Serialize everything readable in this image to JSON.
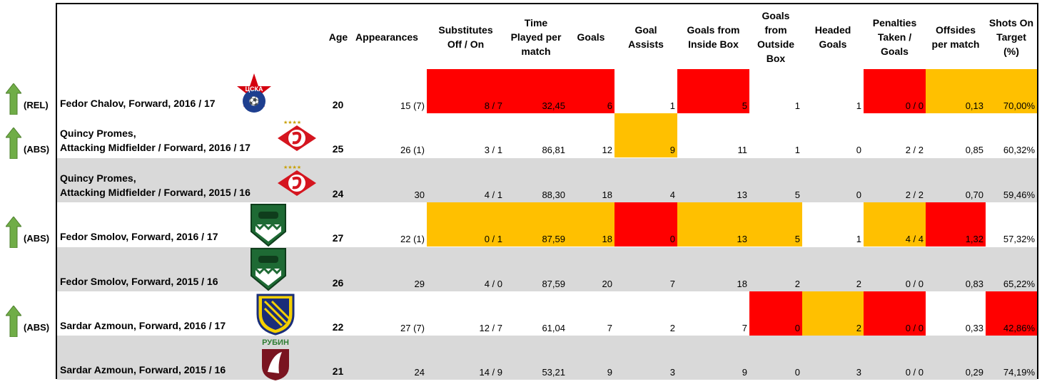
{
  "colors": {
    "red": "#ff0000",
    "amber": "#ffc000",
    "grey": "#d9d9d9",
    "arrow": "#70ad47"
  },
  "chart_data": {
    "type": "table",
    "columns": [
      "Age",
      "Appearances",
      "Substitutes Off / On",
      "Time Played per match",
      "Goals",
      "Goal Assists",
      "Goals from Inside Box",
      "Goals from Outside Box",
      "Headed Goals",
      "Penalties Taken / Goals",
      "Offsides per match",
      "Shots On Target (%)"
    ],
    "header_lines": [
      [
        "Age"
      ],
      [
        "Appearances"
      ],
      [
        "Substitutes",
        "Off / On"
      ],
      [
        "Time",
        "Played per",
        "match"
      ],
      [
        "Goals"
      ],
      [
        "Goal",
        "Assists"
      ],
      [
        "Goals from",
        "Inside Box"
      ],
      [
        "Goals",
        "from",
        "Outside",
        "Box"
      ],
      [
        "Headed",
        "Goals"
      ],
      [
        "Penalties",
        "Taken /",
        "Goals"
      ],
      [
        "Offsides",
        "per match"
      ],
      [
        "Shots On",
        "Target",
        "(%)"
      ]
    ],
    "rows": [
      {
        "tag": "(REL)",
        "arrow": true,
        "club": "CSKA",
        "name_lines": [
          "Fedor Chalov, Forward, 2016 / 17"
        ],
        "age": "20",
        "values": [
          "15 (7)",
          "8 / 7",
          "32,45",
          "6",
          "1",
          "5",
          "1",
          "1",
          "0 / 0",
          "0,13",
          "70,00%"
        ],
        "highlight": [
          "",
          "red",
          "red",
          "red",
          "",
          "red",
          "",
          "",
          "red",
          "amber",
          "amber"
        ]
      },
      {
        "tag": "(ABS)",
        "arrow": true,
        "club": "Spartak",
        "name_lines": [
          "Quincy Promes,",
          "Attacking Midfielder / Forward, 2016 / 17"
        ],
        "age": "25",
        "values": [
          "26 (1)",
          "3 / 1",
          "86,81",
          "12",
          "9",
          "11",
          "1",
          "0",
          "2 / 2",
          "0,85",
          "60,32%"
        ],
        "highlight": [
          "",
          "",
          "",
          "",
          "amber",
          "",
          "",
          "",
          "",
          "",
          ""
        ]
      },
      {
        "tag": "",
        "arrow": false,
        "club": "Spartak",
        "name_lines": [
          "Quincy Promes,",
          "Attacking Midfielder / Forward, 2015 / 16"
        ],
        "age": "24",
        "values": [
          "30",
          "4 / 1",
          "88,30",
          "18",
          "4",
          "13",
          "5",
          "0",
          "2 / 2",
          "0,70",
          "59,46%"
        ],
        "highlight": [
          "",
          "",
          "",
          "",
          "",
          "",
          "",
          "",
          "",
          "",
          ""
        ]
      },
      {
        "tag": "(ABS)",
        "arrow": true,
        "club": "Krasnodar",
        "name_lines": [
          "Fedor Smolov, Forward, 2016 / 17"
        ],
        "age": "27",
        "values": [
          "22 (1)",
          "0 / 1",
          "87,59",
          "18",
          "0",
          "13",
          "5",
          "1",
          "4 / 4",
          "1,32",
          "57,32%"
        ],
        "highlight": [
          "",
          "amber",
          "amber",
          "amber",
          "red",
          "amber",
          "amber",
          "",
          "amber",
          "red",
          ""
        ]
      },
      {
        "tag": "",
        "arrow": false,
        "club": "Krasnodar",
        "name_lines": [
          "Fedor Smolov, Forward, 2015 / 16"
        ],
        "age": "26",
        "values": [
          "29",
          "4 / 0",
          "87,59",
          "20",
          "7",
          "18",
          "2",
          "2",
          "0 / 0",
          "0,83",
          "65,22%"
        ],
        "highlight": [
          "",
          "",
          "",
          "",
          "",
          "",
          "",
          "",
          "",
          "",
          ""
        ]
      },
      {
        "tag": "(ABS)",
        "arrow": true,
        "club": "Rostov",
        "name_lines": [
          "Sardar Azmoun, Forward, 2016 / 17"
        ],
        "age": "22",
        "values": [
          "27 (7)",
          "12 / 7",
          "61,04",
          "7",
          "2",
          "7",
          "0",
          "2",
          "0 / 0",
          "0,33",
          "42,86%"
        ],
        "highlight": [
          "",
          "",
          "",
          "",
          "",
          "",
          "red",
          "amber",
          "red",
          "",
          "red"
        ]
      },
      {
        "tag": "",
        "arrow": false,
        "club": "Rubin",
        "name_lines": [
          "Sardar Azmoun, Forward, 2015 / 16"
        ],
        "age": "21",
        "values": [
          "24",
          "14 / 9",
          "53,21",
          "9",
          "3",
          "9",
          "0",
          "3",
          "0 / 0",
          "0,29",
          "74,19%"
        ],
        "highlight": [
          "",
          "",
          "",
          "",
          "",
          "",
          "",
          "",
          "",
          "",
          ""
        ]
      }
    ],
    "logo_text": {
      "cska": "ЦСКА",
      "rubin": "РУБИН"
    }
  }
}
